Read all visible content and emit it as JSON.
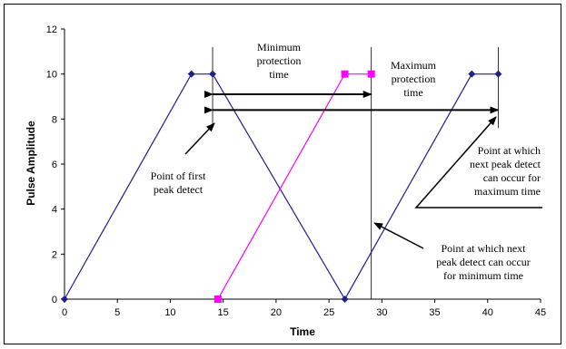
{
  "chart_data": {
    "type": "line",
    "title": "",
    "xlabel": "Time",
    "ylabel": "Pulse Amplitude",
    "xlim": [
      0,
      45
    ],
    "ylim": [
      0,
      12
    ],
    "xticks": [
      0,
      5,
      10,
      15,
      20,
      25,
      30,
      35,
      40,
      45
    ],
    "yticks": [
      0,
      2,
      4,
      6,
      8,
      10,
      12
    ],
    "grid": false,
    "legend": "none",
    "series": [
      {
        "color": "#1f1f8f",
        "marker": "diamond",
        "x": [
          0,
          12,
          14,
          26.5,
          38.5,
          41
        ],
        "y": [
          0,
          10,
          10,
          0,
          10,
          10
        ]
      },
      {
        "color": "#ff00ff",
        "marker": "square",
        "x": [
          14.5,
          26.5,
          29
        ],
        "y": [
          0,
          10,
          10
        ]
      }
    ],
    "vlines": [
      14,
      29,
      41
    ],
    "annotations": [
      {
        "lines": [
          "Minimum",
          "protection",
          "time"
        ]
      },
      {
        "lines": [
          "Maximum",
          "protection",
          "time"
        ]
      },
      {
        "lines": [
          "Point of first",
          "peak detect"
        ]
      },
      {
        "lines": [
          "Point at which",
          "next peak detect",
          "can occur for",
          "maximum time"
        ]
      },
      {
        "lines": [
          "Point at which next",
          "peak detect can occur",
          "for minimum time"
        ]
      }
    ]
  }
}
